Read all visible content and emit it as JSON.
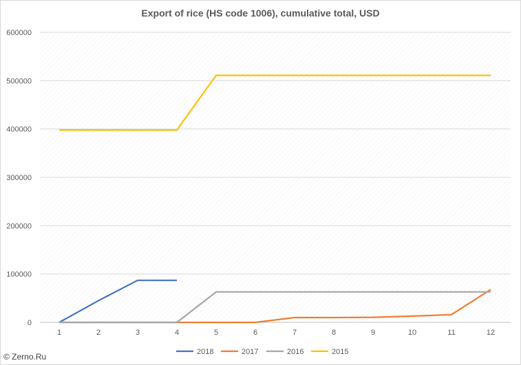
{
  "chart_data": {
    "type": "line",
    "title": "Export of rice (HS code 1006), cumulative total, USD",
    "xlabel": "",
    "ylabel": "",
    "x": [
      1,
      2,
      3,
      4,
      5,
      6,
      7,
      8,
      9,
      10,
      11,
      12
    ],
    "xlim": [
      1,
      12
    ],
    "ylim": [
      0,
      600000
    ],
    "yticks": [
      0,
      100000,
      200000,
      300000,
      400000,
      500000,
      600000
    ],
    "ytick_labels": [
      "0",
      "100000",
      "200000",
      "300000",
      "400000",
      "500000",
      "600000"
    ],
    "xtick_labels": [
      "1",
      "2",
      "3",
      "4",
      "5",
      "6",
      "7",
      "8",
      "9",
      "10",
      "11",
      "12"
    ],
    "grid": true,
    "legend_position": "bottom",
    "series": [
      {
        "name": "2018",
        "color": "#4472c4",
        "values": [
          0,
          45000,
          87000,
          87000,
          null,
          null,
          null,
          null,
          null,
          null,
          null,
          null
        ]
      },
      {
        "name": "2017",
        "color": "#ed7d31",
        "values": [
          0,
          0,
          0,
          0,
          0,
          0,
          10000,
          10000,
          10500,
          13000,
          16000,
          68000
        ]
      },
      {
        "name": "2016",
        "color": "#a5a5a5",
        "values": [
          0,
          0,
          0,
          0,
          63000,
          63000,
          63000,
          63000,
          63000,
          63000,
          63000,
          63000
        ]
      },
      {
        "name": "2015",
        "color": "#ffc000",
        "values": [
          398000,
          398000,
          398000,
          398000,
          511000,
          511000,
          511000,
          511000,
          511000,
          511000,
          511000,
          511000
        ]
      }
    ]
  },
  "footer": {
    "copyright": "© Zerno.Ru"
  }
}
